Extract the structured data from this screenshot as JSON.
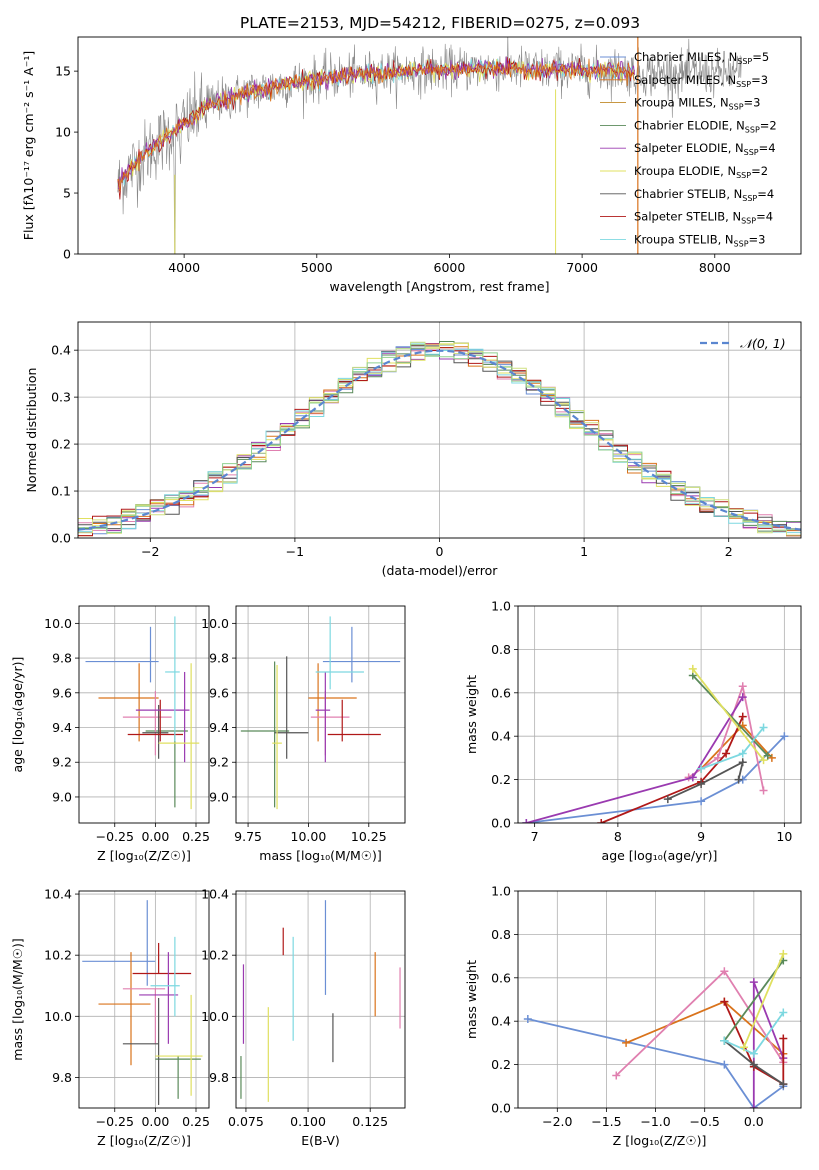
{
  "title": "PLATE=2153, MJD=54212, FIBERID=0275, z=0.093",
  "colors": {
    "legend": [
      "#6b8fd4",
      "#d9731c",
      "#c08a28",
      "#5a8a5a",
      "#9a3ab0",
      "#e0e060",
      "#555555",
      "#b01818",
      "#7dd8e0"
    ],
    "steps": [
      "#e080b0",
      "#9a3ab0",
      "#6b8fd4",
      "#d9731c",
      "#5a8a5a",
      "#e0e060",
      "#555555",
      "#b01818",
      "#7dd8e0",
      "#d0e080",
      "#90d090"
    ],
    "corr": [
      "#6b8fd4",
      "#d9731c",
      "#5a8a5a",
      "#e080b0",
      "#555555",
      "#b01818",
      "#9a3ab0",
      "#7dd8e0",
      "#e0e060"
    ],
    "weights": [
      "#6b8fd4",
      "#d9731c",
      "#e080b0",
      "#9a3ab0",
      "#b01818",
      "#555555",
      "#5a8a5a",
      "#7dd8e0",
      "#e0e060"
    ],
    "gauss": "#5a86d0",
    "grid": "#b0b0b0",
    "axis": "#000000"
  },
  "chart_data": [
    {
      "id": "spectrum",
      "type": "line",
      "xlabel": "wavelength [Angstrom, rest frame]",
      "ylabel": "Flux [fλ10⁻¹⁷ erg cm⁻² s⁻¹ A⁻¹]",
      "xlim": [
        3200,
        8650
      ],
      "ylim": [
        0,
        17.8
      ],
      "xticks": [
        4000,
        5000,
        6000,
        7000,
        8000
      ],
      "yticks": [
        0,
        5,
        10,
        15
      ],
      "grid": false,
      "legend_position": "upper-right",
      "legend": [
        "Chabrier MILES, N_SSP=5",
        "Salpeter MILES, N_SSP=3",
        "Kroupa MILES, N_SSP=3",
        "Chabrier ELODIE, N_SSP=2",
        "Salpeter ELODIE, N_SSP=4",
        "Kroupa ELODIE, N_SSP=2",
        "Chabrier STELIB, N_SSP=4",
        "Salpeter STELIB, N_SSP=4",
        "Kroupa STELIB, N_SSP=3"
      ],
      "continuum": {
        "x": [
          3500,
          3550,
          3650,
          3750,
          3850,
          3950,
          4050,
          4150,
          4250,
          4350,
          4500,
          4700,
          4900,
          5100,
          5300,
          5500,
          5700,
          5900,
          6100,
          6300,
          6500,
          6700,
          6900,
          7100,
          7300,
          7400
        ],
        "y": [
          5.5,
          6.4,
          7.6,
          8.6,
          9.5,
          10.2,
          11.1,
          12.0,
          12.5,
          12.8,
          13.3,
          13.8,
          14.2,
          14.5,
          14.7,
          14.9,
          15.0,
          15.1,
          15.2,
          15.2,
          15.2,
          15.1,
          15.1,
          15.0,
          15.1,
          14.8
        ]
      },
      "data_extends_to": 8200,
      "spikes_x": [
        3930,
        6800,
        7420
      ]
    },
    {
      "id": "residuals",
      "type": "step",
      "xlabel": "(data-model)/error",
      "ylabel": "Normed distribution",
      "xlim": [
        -2.5,
        2.5
      ],
      "ylim": [
        0,
        0.46
      ],
      "xticks": [
        -2,
        -1,
        0,
        1,
        2
      ],
      "yticks": [
        0.0,
        0.1,
        0.2,
        0.3,
        0.4
      ],
      "grid": true,
      "bins": 50,
      "legend_position": "upper-right",
      "legend": [
        "𝒩(0, 1)"
      ]
    },
    {
      "id": "age_vs_Z",
      "type": "errorbar",
      "xlabel": "Z [log₁₀(Z/Z☉)]",
      "ylabel": "age  [log₁₀(age/yr)]",
      "xlim": [
        -0.47,
        0.33
      ],
      "ylim": [
        8.85,
        10.1
      ],
      "xticks": [
        -0.25,
        0.0,
        0.25
      ],
      "yticks": [
        9.0,
        9.2,
        9.4,
        9.6,
        9.8,
        10.0
      ],
      "grid": true,
      "points": [
        {
          "x": -0.03,
          "y": 9.78,
          "xerr": [
            0.4,
            0.05
          ],
          "yerr": [
            0.12,
            0.2
          ]
        },
        {
          "x": -0.1,
          "y": 9.57,
          "xerr": [
            0.25,
            0.12
          ],
          "yerr": [
            0.25,
            0.2
          ]
        },
        {
          "x": 0.12,
          "y": 9.38,
          "xerr": [
            0.18,
            0.08
          ],
          "yerr": [
            0.44,
            0.0
          ]
        },
        {
          "x": 0.0,
          "y": 9.46,
          "xerr": [
            0.2,
            0.1
          ],
          "yerr": [
            0.22,
            0.15
          ]
        },
        {
          "x": 0.02,
          "y": 9.37,
          "xerr": [
            0.1,
            0.06
          ],
          "yerr": [
            0.15,
            0.16
          ]
        },
        {
          "x": 0.03,
          "y": 9.36,
          "xerr": [
            0.2,
            0.14
          ],
          "yerr": [
            0.04,
            0.2
          ]
        },
        {
          "x": 0.18,
          "y": 9.5,
          "xerr": [
            0.3,
            0.03
          ],
          "yerr": [
            0.3,
            0.22
          ]
        },
        {
          "x": 0.12,
          "y": 9.72,
          "xerr": [
            0.06,
            0.03
          ],
          "yerr": [
            0.4,
            0.32
          ]
        },
        {
          "x": 0.22,
          "y": 9.31,
          "xerr": [
            0.2,
            0.05
          ],
          "yerr": [
            0.38,
            0.46
          ]
        }
      ]
    },
    {
      "id": "age_vs_mass",
      "type": "errorbar",
      "xlabel": "mass [log₁₀(M/M☉)]",
      "ylabel": "",
      "xlim": [
        9.7,
        10.4
      ],
      "ylim": [
        8.85,
        10.1
      ],
      "xticks": [
        9.75,
        10.0,
        10.25
      ],
      "yticks": [
        9.0,
        9.2,
        9.4,
        9.6,
        9.8,
        10.0
      ],
      "grid": true,
      "points": [
        {
          "x": 10.18,
          "y": 9.78,
          "xerr": [
            0.12,
            0.2
          ],
          "yerr": [
            0.12,
            0.2
          ]
        },
        {
          "x": 10.04,
          "y": 9.57,
          "xerr": [
            0.04,
            0.16
          ],
          "yerr": [
            0.25,
            0.2
          ]
        },
        {
          "x": 9.86,
          "y": 9.38,
          "xerr": [
            0.14,
            0.06
          ],
          "yerr": [
            0.44,
            0.4
          ]
        },
        {
          "x": 10.07,
          "y": 9.46,
          "xerr": [
            0.06,
            0.1
          ],
          "yerr": [
            0.22,
            0.15
          ]
        },
        {
          "x": 9.91,
          "y": 9.37,
          "xerr": [
            0.05,
            0.09
          ],
          "yerr": [
            0.15,
            0.44
          ]
        },
        {
          "x": 10.14,
          "y": 9.36,
          "xerr": [
            0.06,
            0.16
          ],
          "yerr": [
            0.04,
            0.2
          ]
        },
        {
          "x": 10.07,
          "y": 9.5,
          "xerr": [
            0.04,
            0.02
          ],
          "yerr": [
            0.3,
            0.22
          ]
        },
        {
          "x": 10.09,
          "y": 9.72,
          "xerr": [
            0.06,
            0.14
          ],
          "yerr": [
            0.1,
            0.32
          ]
        },
        {
          "x": 9.87,
          "y": 9.31,
          "xerr": [
            0.02,
            0.02
          ],
          "yerr": [
            0.38,
            0.45
          ]
        }
      ]
    },
    {
      "id": "weight_vs_age",
      "type": "line",
      "xlabel": "age  [log₁₀(age/yr)]",
      "ylabel": "mass weight",
      "xlim": [
        6.8,
        10.2
      ],
      "ylim": [
        0.0,
        1.0
      ],
      "xticks": [
        7,
        8,
        9,
        10
      ],
      "yticks": [
        0.0,
        0.2,
        0.4,
        0.6,
        0.8,
        1.0
      ],
      "grid": true,
      "series": [
        {
          "x": [
            6.9,
            9.0,
            9.5,
            10.0
          ],
          "y": [
            0.0,
            0.1,
            0.2,
            0.4
          ]
        },
        {
          "x": [
            9.0,
            9.5,
            9.85
          ],
          "y": [
            0.25,
            0.45,
            0.3
          ]
        },
        {
          "x": [
            8.85,
            9.2,
            9.5,
            9.75
          ],
          "y": [
            0.21,
            0.3,
            0.63,
            0.15
          ]
        },
        {
          "x": [
            6.9,
            8.9,
            9.5
          ],
          "y": [
            0.0,
            0.21,
            0.58
          ]
        },
        {
          "x": [
            7.8,
            9.0,
            9.3,
            9.5
          ],
          "y": [
            0.0,
            0.19,
            0.32,
            0.49
          ]
        },
        {
          "x": [
            8.6,
            9.0,
            9.5,
            9.45
          ],
          "y": [
            0.11,
            0.18,
            0.28,
            0.2
          ]
        },
        {
          "x": [
            8.9,
            9.8
          ],
          "y": [
            0.68,
            0.31
          ]
        },
        {
          "x": [
            9.0,
            9.5,
            9.75
          ],
          "y": [
            0.25,
            0.32,
            0.44
          ]
        },
        {
          "x": [
            8.9,
            9.75
          ],
          "y": [
            0.71,
            0.29
          ]
        }
      ]
    },
    {
      "id": "mass_vs_Z",
      "type": "errorbar",
      "xlabel": "Z [log₁₀(Z/Z☉)]",
      "ylabel": "mass [log₁₀(M/M☉)]",
      "xlim": [
        -0.47,
        0.33
      ],
      "ylim": [
        9.7,
        10.41
      ],
      "xticks": [
        -0.25,
        0.0,
        0.25
      ],
      "yticks": [
        9.8,
        10.0,
        10.2,
        10.4
      ],
      "grid": true,
      "points": [
        {
          "x": -0.05,
          "y": 10.18,
          "xerr": [
            0.4,
            0.05
          ],
          "yerr": [
            0.08,
            0.2
          ]
        },
        {
          "x": -0.15,
          "y": 10.04,
          "xerr": [
            0.2,
            0.12
          ],
          "yerr": [
            0.2,
            0.17
          ]
        },
        {
          "x": 0.14,
          "y": 9.86,
          "xerr": [
            0.14,
            0.14
          ],
          "yerr": [
            0.13,
            0.01
          ]
        },
        {
          "x": 0.0,
          "y": 10.09,
          "xerr": [
            0.2,
            0.06
          ],
          "yerr": [
            0.18,
            0.0
          ]
        },
        {
          "x": 0.02,
          "y": 9.91,
          "xerr": [
            0.22,
            0.0
          ],
          "yerr": [
            0.2,
            0.15
          ]
        },
        {
          "x": 0.02,
          "y": 10.14,
          "xerr": [
            0.16,
            0.2
          ],
          "yerr": [
            0.0,
            0.1
          ]
        },
        {
          "x": 0.08,
          "y": 10.07,
          "xerr": [
            0.18,
            0.06
          ],
          "yerr": [
            0.16,
            0.14
          ]
        },
        {
          "x": 0.12,
          "y": 10.1,
          "xerr": [
            0.15,
            0.03
          ],
          "yerr": [
            0.1,
            0.16
          ]
        },
        {
          "x": 0.22,
          "y": 9.87,
          "xerr": [
            0.22,
            0.07
          ],
          "yerr": [
            0.13,
            0.2
          ]
        }
      ]
    },
    {
      "id": "mass_vs_EBV",
      "type": "errorbar",
      "xlabel": "E(B-V)",
      "ylabel": "",
      "xlim": [
        0.071,
        0.139
      ],
      "ylim": [
        9.7,
        10.41
      ],
      "xticks": [
        0.075,
        0.1,
        0.125
      ],
      "yticks": [
        9.8,
        10.0,
        10.2,
        10.4
      ],
      "grid": true,
      "points": [
        {
          "x": 0.107,
          "y": 10.18,
          "xerr": [
            0.0,
            0.0
          ],
          "yerr": [
            0.11,
            0.2
          ]
        },
        {
          "x": 0.127,
          "y": 10.04,
          "xerr": [
            0.0,
            0.0
          ],
          "yerr": [
            0.04,
            0.17
          ]
        },
        {
          "x": 0.073,
          "y": 9.86,
          "xerr": [
            0.0,
            0.0
          ],
          "yerr": [
            0.13,
            0.01
          ]
        },
        {
          "x": 0.137,
          "y": 10.09,
          "xerr": [
            0.0,
            0.0
          ],
          "yerr": [
            0.13,
            0.07
          ]
        },
        {
          "x": 0.11,
          "y": 9.91,
          "xerr": [
            0.0,
            0.0
          ],
          "yerr": [
            0.06,
            0.1
          ]
        },
        {
          "x": 0.09,
          "y": 10.2,
          "xerr": [
            0.0,
            0.0
          ],
          "yerr": [
            0.0,
            0.09
          ]
        },
        {
          "x": 0.074,
          "y": 10.07,
          "xerr": [
            0.0,
            0.0
          ],
          "yerr": [
            0.16,
            0.1
          ]
        },
        {
          "x": 0.094,
          "y": 10.1,
          "xerr": [
            0.0,
            0.0
          ],
          "yerr": [
            0.18,
            0.16
          ]
        },
        {
          "x": 0.084,
          "y": 9.87,
          "xerr": [
            0.0,
            0.0
          ],
          "yerr": [
            0.15,
            0.16
          ]
        }
      ]
    },
    {
      "id": "weight_vs_Z",
      "type": "line",
      "xlabel": "Z [log₁₀(Z/Z☉)]",
      "ylabel": "mass weight",
      "xlim": [
        -2.4,
        0.48
      ],
      "ylim": [
        0.0,
        1.0
      ],
      "xticks": [
        -2.0,
        -1.5,
        -1.0,
        -0.5,
        0.0
      ],
      "yticks": [
        0.0,
        0.2,
        0.4,
        0.6,
        0.8,
        1.0
      ],
      "grid": true,
      "series": [
        {
          "x": [
            -2.3,
            -0.3,
            0.0,
            0.3
          ],
          "y": [
            0.41,
            0.2,
            0.0,
            0.1
          ]
        },
        {
          "x": [
            -1.3,
            -0.3,
            0.3
          ],
          "y": [
            0.3,
            0.49,
            0.25
          ]
        },
        {
          "x": [
            -1.4,
            -0.3,
            0.3
          ],
          "y": [
            0.15,
            0.63,
            0.21
          ]
        },
        {
          "x": [
            0.0,
            0.0,
            0.3
          ],
          "y": [
            0.0,
            0.58,
            0.23
          ]
        },
        {
          "x": [
            -0.3,
            0.0,
            0.3,
            0.3
          ],
          "y": [
            0.49,
            0.19,
            0.11,
            0.32
          ]
        },
        {
          "x": [
            -0.3,
            0.0,
            0.3
          ],
          "y": [
            0.31,
            0.2,
            0.11
          ]
        },
        {
          "x": [
            -0.3,
            0.3
          ],
          "y": [
            0.31,
            0.68
          ]
        },
        {
          "x": [
            -0.3,
            0.0,
            0.3
          ],
          "y": [
            0.31,
            0.25,
            0.44
          ]
        },
        {
          "x": [
            -0.1,
            0.3
          ],
          "y": [
            0.28,
            0.71
          ]
        }
      ]
    }
  ]
}
